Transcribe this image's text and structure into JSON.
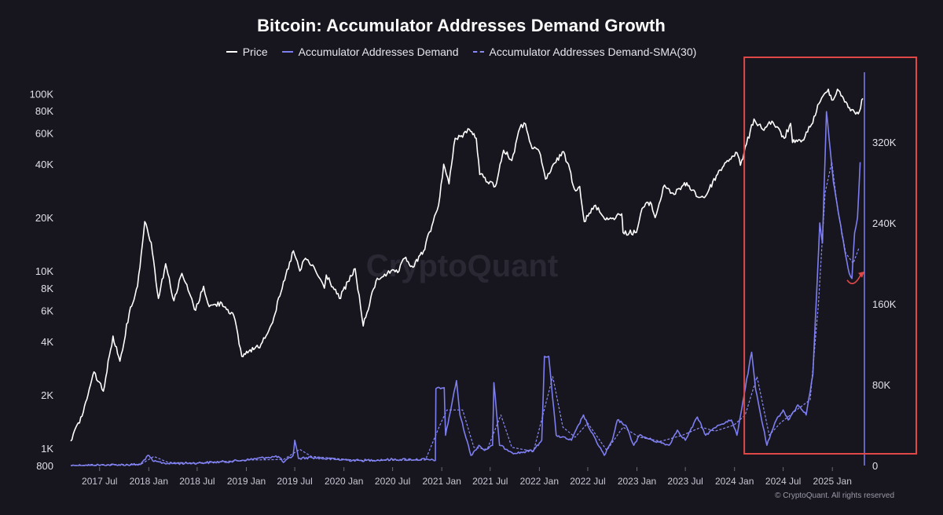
{
  "chart_data": {
    "type": "line",
    "title": "Bitcoin: Accumulator Addresses Demand Growth",
    "legend": [
      {
        "label": "Price",
        "style": "solid",
        "color": "#ffffff"
      },
      {
        "label": "Accumulator Addresses Demand",
        "style": "solid",
        "color": "#7d7ef0"
      },
      {
        "label": "Accumulator Addresses Demand-SMA(30)",
        "style": "dashed",
        "color": "#8a8bf2"
      }
    ],
    "legend_position": "top-center",
    "x_axis": {
      "type": "date",
      "range": [
        "2017-03-15",
        "2025-04-25"
      ],
      "ticks": [
        {
          "date": "2017-07-01",
          "label": "2017 Jul"
        },
        {
          "date": "2018-01-01",
          "label": "2018 Jan"
        },
        {
          "date": "2018-07-01",
          "label": "2018 Jul"
        },
        {
          "date": "2019-01-01",
          "label": "2019 Jan"
        },
        {
          "date": "2019-07-01",
          "label": "2019 Jul"
        },
        {
          "date": "2020-01-01",
          "label": "2020 Jan"
        },
        {
          "date": "2020-07-01",
          "label": "2020 Jul"
        },
        {
          "date": "2021-01-01",
          "label": "2021 Jan"
        },
        {
          "date": "2021-07-01",
          "label": "2021 Jul"
        },
        {
          "date": "2022-01-01",
          "label": "2022 Jan"
        },
        {
          "date": "2022-07-01",
          "label": "2022 Jul"
        },
        {
          "date": "2023-01-01",
          "label": "2023 Jan"
        },
        {
          "date": "2023-07-01",
          "label": "2023 Jul"
        },
        {
          "date": "2024-01-01",
          "label": "2024 Jan"
        },
        {
          "date": "2024-07-01",
          "label": "2024 Jul"
        },
        {
          "date": "2025-01-01",
          "label": "2025 Jan"
        }
      ]
    },
    "y_left": {
      "scale": "log",
      "range": [
        800,
        110000
      ],
      "ticks": [
        {
          "value": 800,
          "label": "800"
        },
        {
          "value": 1000,
          "label": "1K"
        },
        {
          "value": 2000,
          "label": "2K"
        },
        {
          "value": 4000,
          "label": "4K"
        },
        {
          "value": 6000,
          "label": "6K"
        },
        {
          "value": 8000,
          "label": "8K"
        },
        {
          "value": 10000,
          "label": "10K"
        },
        {
          "value": 20000,
          "label": "20K"
        },
        {
          "value": 40000,
          "label": "40K"
        },
        {
          "value": 60000,
          "label": "60K"
        },
        {
          "value": 80000,
          "label": "80K"
        },
        {
          "value": 100000,
          "label": "100K"
        }
      ]
    },
    "y_right": {
      "scale": "linear",
      "range": [
        0,
        375000
      ],
      "ticks": [
        {
          "value": 0,
          "label": "0"
        },
        {
          "value": 80000,
          "label": "80K"
        },
        {
          "value": 160000,
          "label": "160K"
        },
        {
          "value": 240000,
          "label": "240K"
        },
        {
          "value": 320000,
          "label": "320K"
        }
      ]
    },
    "series": [
      {
        "name": "Price",
        "axis": "left",
        "points": [
          [
            "2017-03-15",
            1100
          ],
          [
            "2017-05-01",
            1600
          ],
          [
            "2017-06-10",
            2700
          ],
          [
            "2017-07-15",
            2100
          ],
          [
            "2017-08-20",
            4300
          ],
          [
            "2017-09-15",
            3100
          ],
          [
            "2017-10-20",
            5800
          ],
          [
            "2017-11-20",
            8200
          ],
          [
            "2017-12-17",
            19000
          ],
          [
            "2018-01-10",
            14500
          ],
          [
            "2018-02-06",
            7000
          ],
          [
            "2018-03-05",
            11000
          ],
          [
            "2018-04-05",
            6800
          ],
          [
            "2018-05-05",
            9700
          ],
          [
            "2018-06-25",
            6000
          ],
          [
            "2018-07-25",
            8200
          ],
          [
            "2018-08-15",
            6300
          ],
          [
            "2018-10-01",
            6600
          ],
          [
            "2018-11-15",
            5600
          ],
          [
            "2018-12-15",
            3300
          ],
          [
            "2019-01-15",
            3600
          ],
          [
            "2019-02-15",
            3700
          ],
          [
            "2019-04-05",
            5000
          ],
          [
            "2019-05-15",
            8000
          ],
          [
            "2019-06-26",
            13000
          ],
          [
            "2019-07-20",
            10000
          ],
          [
            "2019-08-10",
            11800
          ],
          [
            "2019-09-15",
            10200
          ],
          [
            "2019-10-20",
            8000
          ],
          [
            "2019-10-27",
            9500
          ],
          [
            "2019-12-15",
            7000
          ],
          [
            "2020-02-12",
            10300
          ],
          [
            "2020-03-13",
            4900
          ],
          [
            "2020-04-30",
            8800
          ],
          [
            "2020-06-01",
            9600
          ],
          [
            "2020-07-25",
            10000
          ],
          [
            "2020-08-15",
            11800
          ],
          [
            "2020-09-15",
            10500
          ],
          [
            "2020-10-25",
            13000
          ],
          [
            "2020-11-25",
            18000
          ],
          [
            "2020-12-20",
            23500
          ],
          [
            "2021-01-08",
            40000
          ],
          [
            "2021-01-28",
            31000
          ],
          [
            "2021-02-20",
            56000
          ],
          [
            "2021-03-15",
            58000
          ],
          [
            "2021-04-14",
            63000
          ],
          [
            "2021-05-10",
            56000
          ],
          [
            "2021-05-23",
            35000
          ],
          [
            "2021-07-20",
            30000
          ],
          [
            "2021-08-20",
            48000
          ],
          [
            "2021-09-20",
            42000
          ],
          [
            "2021-10-20",
            64000
          ],
          [
            "2021-11-10",
            67500
          ],
          [
            "2021-12-05",
            49000
          ],
          [
            "2022-01-01",
            47000
          ],
          [
            "2022-01-24",
            33000
          ],
          [
            "2022-03-28",
            47000
          ],
          [
            "2022-04-20",
            40000
          ],
          [
            "2022-05-12",
            29000
          ],
          [
            "2022-06-01",
            30000
          ],
          [
            "2022-06-18",
            19000
          ],
          [
            "2022-07-30",
            23500
          ],
          [
            "2022-08-20",
            21000
          ],
          [
            "2022-09-15",
            19500
          ],
          [
            "2022-11-05",
            21000
          ],
          [
            "2022-11-10",
            16500
          ],
          [
            "2022-12-30",
            16500
          ],
          [
            "2023-01-20",
            22500
          ],
          [
            "2023-02-20",
            24500
          ],
          [
            "2023-03-10",
            20000
          ],
          [
            "2023-04-14",
            30500
          ],
          [
            "2023-05-20",
            27000
          ],
          [
            "2023-06-23",
            30500
          ],
          [
            "2023-07-15",
            30300
          ],
          [
            "2023-08-20",
            26000
          ],
          [
            "2023-09-15",
            26500
          ],
          [
            "2023-10-25",
            34500
          ],
          [
            "2023-12-05",
            42000
          ],
          [
            "2024-01-10",
            46500
          ],
          [
            "2024-01-23",
            39500
          ],
          [
            "2024-02-15",
            52000
          ],
          [
            "2024-03-14",
            72000
          ],
          [
            "2024-04-15",
            63000
          ],
          [
            "2024-05-20",
            70000
          ],
          [
            "2024-07-05",
            56000
          ],
          [
            "2024-07-29",
            68000
          ],
          [
            "2024-08-05",
            53000
          ],
          [
            "2024-09-06",
            53500
          ],
          [
            "2024-10-15",
            67000
          ],
          [
            "2024-11-12",
            88000
          ],
          [
            "2024-12-17",
            106000
          ],
          [
            "2024-12-30",
            92000
          ],
          [
            "2025-01-20",
            106000
          ],
          [
            "2025-02-25",
            88000
          ],
          [
            "2025-03-10",
            80000
          ],
          [
            "2025-04-08",
            77000
          ],
          [
            "2025-04-25",
            94000
          ]
        ]
      },
      {
        "name": "Accumulator Addresses Demand",
        "axis": "right",
        "points": [
          [
            "2017-03-15",
            0
          ],
          [
            "2017-12-01",
            1000
          ],
          [
            "2017-12-28",
            10000
          ],
          [
            "2018-01-20",
            4000
          ],
          [
            "2018-03-15",
            2000
          ],
          [
            "2018-07-01",
            2500
          ],
          [
            "2018-11-01",
            4000
          ],
          [
            "2019-01-15",
            6000
          ],
          [
            "2019-03-15",
            8000
          ],
          [
            "2019-05-01",
            9000
          ],
          [
            "2019-05-20",
            3000
          ],
          [
            "2019-06-25",
            10000
          ],
          [
            "2019-07-01",
            25000
          ],
          [
            "2019-07-15",
            7000
          ],
          [
            "2019-09-01",
            8000
          ],
          [
            "2019-12-01",
            6000
          ],
          [
            "2020-03-01",
            5000
          ],
          [
            "2020-07-01",
            6000
          ],
          [
            "2020-11-01",
            6000
          ],
          [
            "2020-12-08",
            5000
          ],
          [
            "2020-12-10",
            76000
          ],
          [
            "2021-01-10",
            77000
          ],
          [
            "2021-01-15",
            30000
          ],
          [
            "2021-02-25",
            84000
          ],
          [
            "2021-03-10",
            50000
          ],
          [
            "2021-04-20",
            10000
          ],
          [
            "2021-05-20",
            20000
          ],
          [
            "2021-06-10",
            15000
          ],
          [
            "2021-07-10",
            20000
          ],
          [
            "2021-07-15",
            82000
          ],
          [
            "2021-08-05",
            20000
          ],
          [
            "2021-10-01",
            12000
          ],
          [
            "2021-12-10",
            15000
          ],
          [
            "2022-01-10",
            25000
          ],
          [
            "2022-01-20",
            108000
          ],
          [
            "2022-02-05",
            108000
          ],
          [
            "2022-03-05",
            30000
          ],
          [
            "2022-05-01",
            25000
          ],
          [
            "2022-06-15",
            50000
          ],
          [
            "2022-07-10",
            35000
          ],
          [
            "2022-09-01",
            10000
          ],
          [
            "2022-10-01",
            25000
          ],
          [
            "2022-10-20",
            45000
          ],
          [
            "2022-11-20",
            40000
          ],
          [
            "2022-12-20",
            20000
          ],
          [
            "2023-01-10",
            30000
          ],
          [
            "2023-03-01",
            25000
          ],
          [
            "2023-05-01",
            20000
          ],
          [
            "2023-06-01",
            35000
          ],
          [
            "2023-07-01",
            25000
          ],
          [
            "2023-08-15",
            48000
          ],
          [
            "2023-09-15",
            30000
          ],
          [
            "2023-11-01",
            40000
          ],
          [
            "2023-12-20",
            45000
          ],
          [
            "2024-01-10",
            30000
          ],
          [
            "2024-03-05",
            112000
          ],
          [
            "2024-03-20",
            75000
          ],
          [
            "2024-05-01",
            20000
          ],
          [
            "2024-06-05",
            45000
          ],
          [
            "2024-07-01",
            55000
          ],
          [
            "2024-07-20",
            45000
          ],
          [
            "2024-08-25",
            60000
          ],
          [
            "2024-09-25",
            50000
          ],
          [
            "2024-10-20",
            90000
          ],
          [
            "2024-11-15",
            240000
          ],
          [
            "2024-11-25",
            220000
          ],
          [
            "2024-12-10",
            350000
          ],
          [
            "2024-12-25",
            310000
          ],
          [
            "2025-01-05",
            280000
          ],
          [
            "2025-02-15",
            215000
          ],
          [
            "2025-03-05",
            190000
          ],
          [
            "2025-03-15",
            185000
          ],
          [
            "2025-03-25",
            230000
          ],
          [
            "2025-04-05",
            245000
          ],
          [
            "2025-04-15",
            300000
          ]
        ]
      },
      {
        "name": "Accumulator Addresses Demand-SMA(30)",
        "axis": "right",
        "points": [
          [
            "2017-03-15",
            0
          ],
          [
            "2017-12-01",
            1000
          ],
          [
            "2018-01-20",
            9000
          ],
          [
            "2018-03-15",
            3000
          ],
          [
            "2018-07-01",
            2500
          ],
          [
            "2019-01-15",
            5500
          ],
          [
            "2019-05-20",
            6000
          ],
          [
            "2019-07-20",
            16000
          ],
          [
            "2019-09-01",
            9000
          ],
          [
            "2020-03-01",
            5000
          ],
          [
            "2020-11-01",
            5500
          ],
          [
            "2020-12-25",
            40000
          ],
          [
            "2021-01-20",
            55000
          ],
          [
            "2021-03-20",
            55000
          ],
          [
            "2021-05-01",
            18000
          ],
          [
            "2021-06-20",
            16000
          ],
          [
            "2021-08-10",
            50000
          ],
          [
            "2021-09-20",
            18000
          ],
          [
            "2021-12-10",
            14000
          ],
          [
            "2022-02-20",
            88000
          ],
          [
            "2022-03-30",
            38000
          ],
          [
            "2022-05-15",
            28000
          ],
          [
            "2022-07-01",
            42000
          ],
          [
            "2022-09-10",
            15000
          ],
          [
            "2022-11-10",
            38000
          ],
          [
            "2023-01-10",
            28000
          ],
          [
            "2023-04-01",
            24000
          ],
          [
            "2023-06-20",
            30000
          ],
          [
            "2023-08-30",
            38000
          ],
          [
            "2023-10-20",
            34000
          ],
          [
            "2023-12-30",
            40000
          ],
          [
            "2024-02-10",
            50000
          ],
          [
            "2024-03-25",
            88000
          ],
          [
            "2024-05-10",
            30000
          ],
          [
            "2024-06-20",
            42000
          ],
          [
            "2024-08-20",
            55000
          ],
          [
            "2024-10-10",
            65000
          ],
          [
            "2024-11-10",
            160000
          ],
          [
            "2024-12-05",
            270000
          ],
          [
            "2024-12-30",
            300000
          ],
          [
            "2025-01-20",
            255000
          ],
          [
            "2025-02-20",
            210000
          ],
          [
            "2025-03-20",
            200000
          ],
          [
            "2025-04-10",
            215000
          ]
        ]
      }
    ],
    "annotation": {
      "type": "highlight-box",
      "color": "#e04848",
      "x_range": [
        "2024-03-01",
        "2025-05-10"
      ]
    },
    "grid": false
  },
  "watermark": "CryptoQuant",
  "copyright": "© CryptoQuant. All rights reserved",
  "colors": {
    "background": "#17161f",
    "price": "#ffffff",
    "demand": "#7d7ef0",
    "sma": "#8a8bf2",
    "highlight": "#e04848"
  }
}
